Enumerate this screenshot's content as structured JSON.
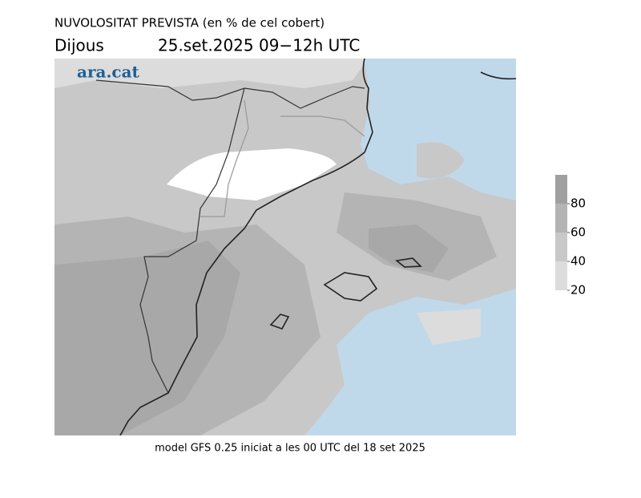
{
  "header": {
    "title": "NUVOLOSITAT PREVISTA (en % de cel cobert)",
    "day": "Dijous",
    "date": "25.set.2025 09−12h UTC"
  },
  "logo": "ara.cat",
  "caption": "model GFS 0.25 iniciat a les 00 UTC del 18 set 2025",
  "colorbar": {
    "lim": [
      20,
      100
    ],
    "ticks": [
      20,
      40,
      60,
      80
    ],
    "colors": [
      "#dcdcdc",
      "#c8c8c8",
      "#b4b4b4",
      "#a0a0a0"
    ]
  }
}
